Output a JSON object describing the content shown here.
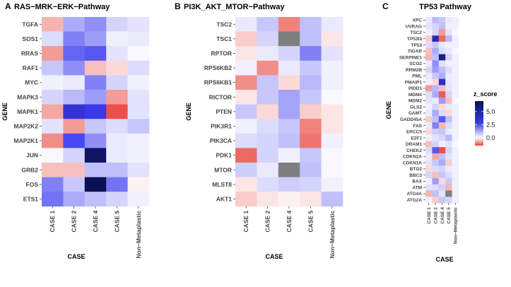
{
  "chart_data": [
    {
      "type": "heatmap",
      "letter": "A",
      "title": "RAS−MRK−ERK−Pathway",
      "xlabel": "CASE",
      "ylabel": "GENE",
      "categories": [
        "CASE 1",
        "CASE 2",
        "CASE 4",
        "CASE 5",
        "Non−Metaplastic"
      ],
      "genes": [
        "TGFA",
        "SOS1",
        "RRAS",
        "RAF1",
        "MYC",
        "MAPK3",
        "MAPK1",
        "MAP2K2",
        "MAP2K1",
        "JUN",
        "GRB2",
        "FOS",
        "ETS1"
      ],
      "values": [
        [
          -0.6,
          1.2,
          1.6,
          0.6,
          0.4
        ],
        [
          0.5,
          1.8,
          1.4,
          0.2,
          0.3
        ],
        [
          -0.8,
          2.2,
          2.4,
          0.4,
          0.1
        ],
        [
          0.8,
          1.6,
          -0.5,
          -0.3,
          0.5
        ],
        [
          0.2,
          0.3,
          1.8,
          0.6,
          0.2
        ],
        [
          0.6,
          1.0,
          1.4,
          -0.8,
          0.4
        ],
        [
          -0.7,
          3.6,
          3.0,
          -1.4,
          0.4
        ],
        [
          0.4,
          -0.8,
          0.8,
          0.5,
          0.8
        ],
        [
          -0.9,
          2.6,
          1.6,
          0.3,
          0.2
        ],
        [
          0.1,
          0.6,
          6.6,
          0.3,
          0.2
        ],
        [
          -0.5,
          -0.5,
          0.9,
          0.9,
          0.4
        ],
        [
          1.8,
          0.8,
          7.0,
          2.0,
          -0.1
        ],
        [
          2.0,
          1.2,
          0.9,
          0.6,
          0.2
        ]
      ]
    },
    {
      "type": "heatmap",
      "letter": "B",
      "title": "PI3K_AKT_MTOR−Pathway",
      "xlabel": "CASE",
      "ylabel": "GENE",
      "categories": [
        "CASE 1",
        "CASE 2",
        "CASE 4",
        "CASE 5",
        "Non−Metaplastic"
      ],
      "genes": [
        "TSC2",
        "TSC1",
        "RPTOR",
        "RPS6KB2",
        "RPS6KB1",
        "RICTOR",
        "PTEN",
        "PIK3R1",
        "PIK3CA",
        "PDK1",
        "MTOR",
        "MLST8",
        "AKT1"
      ],
      "values": [
        [
          0.3,
          0.8,
          -1.0,
          0.9,
          0.3
        ],
        [
          -0.4,
          0.6,
          null,
          0.9,
          -0.2
        ],
        [
          -0.2,
          0.3,
          0.6,
          1.8,
          0.4
        ],
        [
          0.2,
          -0.9,
          0.3,
          0.8,
          0.2
        ],
        [
          -0.9,
          0.8,
          -0.3,
          1.0,
          0.2
        ],
        [
          -0.2,
          0.8,
          1.3,
          0.8,
          0.1
        ],
        [
          0.8,
          -0.3,
          1.3,
          -0.4,
          -0.2
        ],
        [
          0.2,
          0.5,
          0.8,
          -1.0,
          -0.2
        ],
        [
          0.5,
          0.6,
          0.9,
          -1.1,
          0.2
        ],
        [
          -1.2,
          0.6,
          0.2,
          0.8,
          0.1
        ],
        [
          0.7,
          0.3,
          null,
          0.9,
          0.1
        ],
        [
          -0.2,
          0.5,
          0.7,
          0.6,
          0.2
        ],
        [
          -0.4,
          -0.2,
          -0.1,
          -0.2,
          0.9
        ]
      ]
    },
    {
      "type": "heatmap",
      "letter": "C",
      "title": "TP53 Pathway",
      "xlabel": "CASE",
      "ylabel": "GENE",
      "categories": [
        "CASE 1",
        "CASE 2",
        "CASE 4",
        "CASE 5",
        "Non−Metaplastic"
      ],
      "genes": [
        "XPC",
        "UVRAG",
        "TSC2",
        "TP53I3",
        "TP53",
        "TIGAR",
        "SERPINE1",
        "SCO2",
        "RRM2B",
        "PML",
        "PMAIP1",
        "PIDD1",
        "MDM4",
        "MDM2",
        "GLS2",
        "GAMT",
        "GADD45A",
        "FAS",
        "ERCC5",
        "E2F1",
        "DRAM1",
        "CHEK2",
        "CDKN2A",
        "CDKN1A",
        "BTG2",
        "BBC3",
        "BAX",
        "ATM",
        "ATG4A",
        "ATG2A"
      ],
      "values": [
        [
          0.3,
          1.0,
          0.8,
          0.3,
          0.2
        ],
        [
          0.4,
          0.6,
          0.9,
          0.2,
          0.2
        ],
        [
          0.2,
          0.6,
          -0.8,
          0.4,
          0.1
        ],
        [
          -0.4,
          4.5,
          -1.2,
          1.0,
          0.2
        ],
        [
          0.5,
          0.8,
          0.3,
          0.2,
          0.2
        ],
        [
          -0.5,
          1.2,
          0.5,
          0.3,
          0.1
        ],
        [
          -0.6,
          0.9,
          5.5,
          0.6,
          0.2
        ],
        [
          0.3,
          1.6,
          0.4,
          0.2,
          0.2
        ],
        [
          0.6,
          1.4,
          0.9,
          0.5,
          0.2
        ],
        [
          0.3,
          0.8,
          1.2,
          0.3,
          0.2
        ],
        [
          0.2,
          -0.3,
          3.8,
          0.3,
          0.2
        ],
        [
          -0.8,
          1.0,
          -0.5,
          0.4,
          0.2
        ],
        [
          0.5,
          1.2,
          -1.3,
          0.6,
          0.2
        ],
        [
          0.4,
          0.3,
          1.4,
          -0.5,
          0.1
        ],
        [
          0.2,
          0.6,
          -0.3,
          0.3,
          0.2
        ],
        [
          0.3,
          1.2,
          0.5,
          -0.3,
          0.2
        ],
        [
          -0.4,
          0.9,
          2.4,
          0.9,
          0.2
        ],
        [
          0.3,
          1.8,
          -0.6,
          0.5,
          0.2
        ],
        [
          -0.3,
          0.7,
          0.8,
          0.3,
          0.2
        ],
        [
          0.2,
          0.4,
          0.6,
          1.0,
          0.2
        ],
        [
          -0.5,
          0.6,
          0.2,
          0.4,
          0.1
        ],
        [
          0.5,
          2.4,
          -1.4,
          0.6,
          0.2
        ],
        [
          0.3,
          -0.7,
          0.9,
          0.4,
          0.2
        ],
        [
          0.4,
          0.8,
          1.2,
          -0.4,
          0.2
        ],
        [
          -0.3,
          0.5,
          0.6,
          0.3,
          0.2
        ],
        [
          0.6,
          -0.5,
          0.8,
          0.5,
          0.2
        ],
        [
          0.2,
          1.4,
          -0.3,
          0.8,
          0.2
        ],
        [
          0.4,
          0.5,
          0.7,
          -0.6,
          0.2
        ],
        [
          -0.6,
          0.9,
          0.4,
          null,
          0.2
        ],
        [
          0.2,
          -0.4,
          0.8,
          0.6,
          0.2
        ]
      ]
    }
  ],
  "legend": {
    "title": "z_score",
    "ticks": [
      "5.0",
      "2.5",
      "0.0"
    ],
    "tick_values": [
      5,
      2.5,
      0
    ],
    "range": [
      -1.5,
      7
    ],
    "colors": {
      "low": "#E8433A",
      "mid": "#FFFFFF",
      "high": "#0A1055",
      "mid_high": "#3B3BF0",
      "na": "#7F7F7F"
    }
  }
}
